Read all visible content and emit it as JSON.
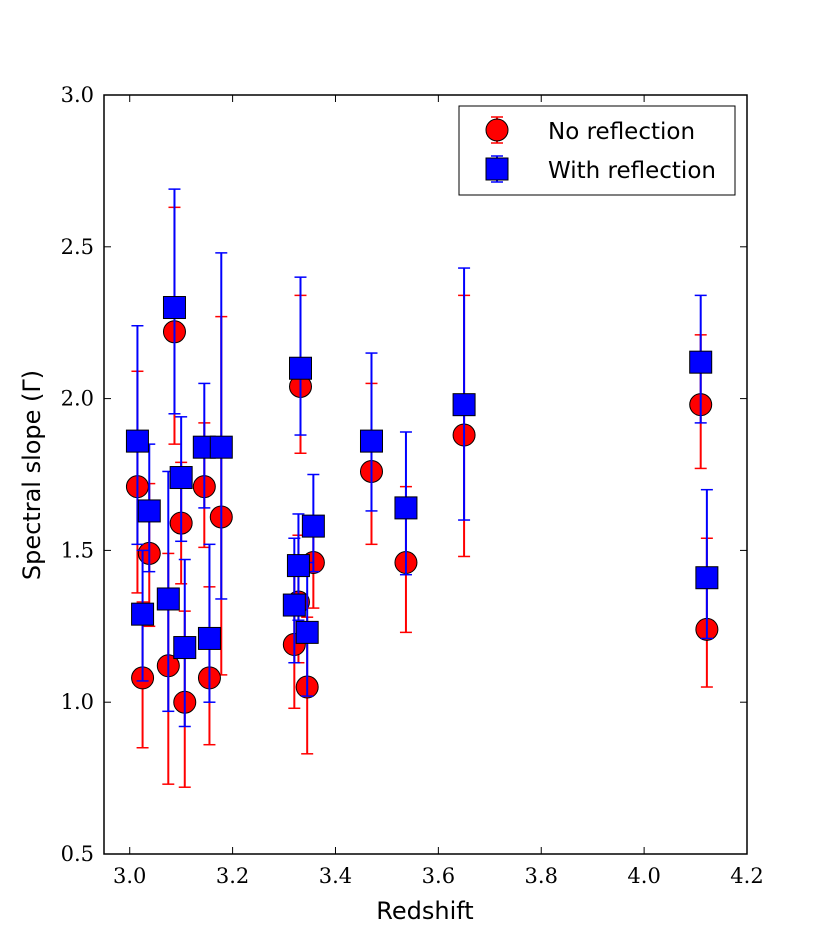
{
  "chart_data": {
    "type": "scatter",
    "title": "",
    "xlabel": "Redshift",
    "ylabel": "Spectral slope (Γ)",
    "xlim": [
      2.95,
      4.2
    ],
    "ylim": [
      0.5,
      3.0
    ],
    "xticks": [
      3.0,
      3.2,
      3.4,
      3.6,
      3.8,
      4.0,
      4.2
    ],
    "xtick_labels": [
      "3.0",
      "3.2",
      "3.4",
      "3.6",
      "3.8",
      "4.0",
      "4.2"
    ],
    "yticks": [
      0.5,
      1.0,
      1.5,
      2.0,
      2.5,
      3.0
    ],
    "ytick_labels": [
      "0.5",
      "1.0",
      "1.5",
      "2.0",
      "2.5",
      "3.0"
    ],
    "grid": false,
    "legend_position": "top-right",
    "series": [
      {
        "name": "No reflection",
        "marker": "circle",
        "color": "#ff0000",
        "errorbar_color": "#ff0000",
        "points": [
          {
            "x": 3.015,
            "y": 1.71,
            "ylo": 1.36,
            "yhi": 2.09
          },
          {
            "x": 3.025,
            "y": 1.08,
            "ylo": 0.85,
            "yhi": 1.33
          },
          {
            "x": 3.038,
            "y": 1.49,
            "ylo": 1.25,
            "yhi": 1.72
          },
          {
            "x": 3.075,
            "y": 1.12,
            "ylo": 0.73,
            "yhi": 1.49
          },
          {
            "x": 3.087,
            "y": 2.22,
            "ylo": 1.85,
            "yhi": 2.63
          },
          {
            "x": 3.1,
            "y": 1.59,
            "ylo": 1.39,
            "yhi": 1.79
          },
          {
            "x": 3.107,
            "y": 1.0,
            "ylo": 0.72,
            "yhi": 1.3
          },
          {
            "x": 3.145,
            "y": 1.71,
            "ylo": 1.51,
            "yhi": 1.92
          },
          {
            "x": 3.155,
            "y": 1.08,
            "ylo": 0.86,
            "yhi": 1.38
          },
          {
            "x": 3.178,
            "y": 1.61,
            "ylo": 1.09,
            "yhi": 2.27
          },
          {
            "x": 3.32,
            "y": 1.19,
            "ylo": 0.98,
            "yhi": 1.43
          },
          {
            "x": 3.328,
            "y": 1.33,
            "ylo": 1.13,
            "yhi": 1.55
          },
          {
            "x": 3.332,
            "y": 2.04,
            "ylo": 1.82,
            "yhi": 2.34
          },
          {
            "x": 3.345,
            "y": 1.05,
            "ylo": 0.83,
            "yhi": 1.28
          },
          {
            "x": 3.357,
            "y": 1.46,
            "ylo": 1.31,
            "yhi": 1.6
          },
          {
            "x": 3.47,
            "y": 1.76,
            "ylo": 1.52,
            "yhi": 2.05
          },
          {
            "x": 3.537,
            "y": 1.46,
            "ylo": 1.23,
            "yhi": 1.71
          },
          {
            "x": 3.65,
            "y": 1.88,
            "ylo": 1.48,
            "yhi": 2.34
          },
          {
            "x": 4.11,
            "y": 1.98,
            "ylo": 1.77,
            "yhi": 2.21
          },
          {
            "x": 4.122,
            "y": 1.24,
            "ylo": 1.05,
            "yhi": 1.54
          }
        ]
      },
      {
        "name": "With reflection",
        "marker": "square",
        "color": "#0000ff",
        "errorbar_color": "#0000ff",
        "points": [
          {
            "x": 3.015,
            "y": 1.86,
            "ylo": 1.52,
            "yhi": 2.24
          },
          {
            "x": 3.025,
            "y": 1.29,
            "ylo": 1.07,
            "yhi": 1.5
          },
          {
            "x": 3.038,
            "y": 1.63,
            "ylo": 1.43,
            "yhi": 1.85
          },
          {
            "x": 3.075,
            "y": 1.34,
            "ylo": 0.97,
            "yhi": 1.76
          },
          {
            "x": 3.087,
            "y": 2.3,
            "ylo": 1.95,
            "yhi": 2.69
          },
          {
            "x": 3.1,
            "y": 1.74,
            "ylo": 1.53,
            "yhi": 1.94
          },
          {
            "x": 3.107,
            "y": 1.18,
            "ylo": 0.92,
            "yhi": 1.47
          },
          {
            "x": 3.145,
            "y": 1.84,
            "ylo": 1.64,
            "yhi": 2.05
          },
          {
            "x": 3.155,
            "y": 1.21,
            "ylo": 1.0,
            "yhi": 1.52
          },
          {
            "x": 3.178,
            "y": 1.84,
            "ylo": 1.34,
            "yhi": 2.48
          },
          {
            "x": 3.32,
            "y": 1.32,
            "ylo": 1.13,
            "yhi": 1.54
          },
          {
            "x": 3.328,
            "y": 1.45,
            "ylo": 1.27,
            "yhi": 1.62
          },
          {
            "x": 3.332,
            "y": 2.1,
            "ylo": 1.88,
            "yhi": 2.4
          },
          {
            "x": 3.345,
            "y": 1.23,
            "ylo": 1.02,
            "yhi": 1.46
          },
          {
            "x": 3.357,
            "y": 1.58,
            "ylo": 1.43,
            "yhi": 1.75
          },
          {
            "x": 3.47,
            "y": 1.86,
            "ylo": 1.63,
            "yhi": 2.15
          },
          {
            "x": 3.537,
            "y": 1.64,
            "ylo": 1.42,
            "yhi": 1.89
          },
          {
            "x": 3.65,
            "y": 1.98,
            "ylo": 1.6,
            "yhi": 2.43
          },
          {
            "x": 4.11,
            "y": 2.12,
            "ylo": 1.92,
            "yhi": 2.34
          },
          {
            "x": 4.122,
            "y": 1.41,
            "ylo": 1.21,
            "yhi": 1.7
          }
        ]
      }
    ]
  }
}
